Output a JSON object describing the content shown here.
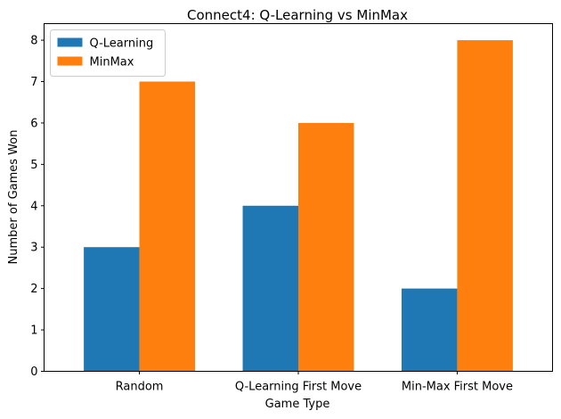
{
  "chart_data": {
    "type": "bar",
    "title": "Connect4: Q-Learning vs MinMax",
    "xlabel": "Game Type",
    "ylabel": "Number of Games Won",
    "categories": [
      "Random",
      "Q-Learning First Move",
      "Min-Max First Move"
    ],
    "series": [
      {
        "name": "Q-Learning",
        "values": [
          3,
          4,
          2
        ],
        "color": "#1f77b4"
      },
      {
        "name": "MinMax",
        "values": [
          7,
          6,
          8
        ],
        "color": "#ff7f0e"
      }
    ],
    "ylim": [
      0,
      8.4
    ],
    "yticks": [
      0,
      1,
      2,
      3,
      4,
      5,
      6,
      7,
      8
    ],
    "grid": false,
    "legend": "top-left"
  }
}
